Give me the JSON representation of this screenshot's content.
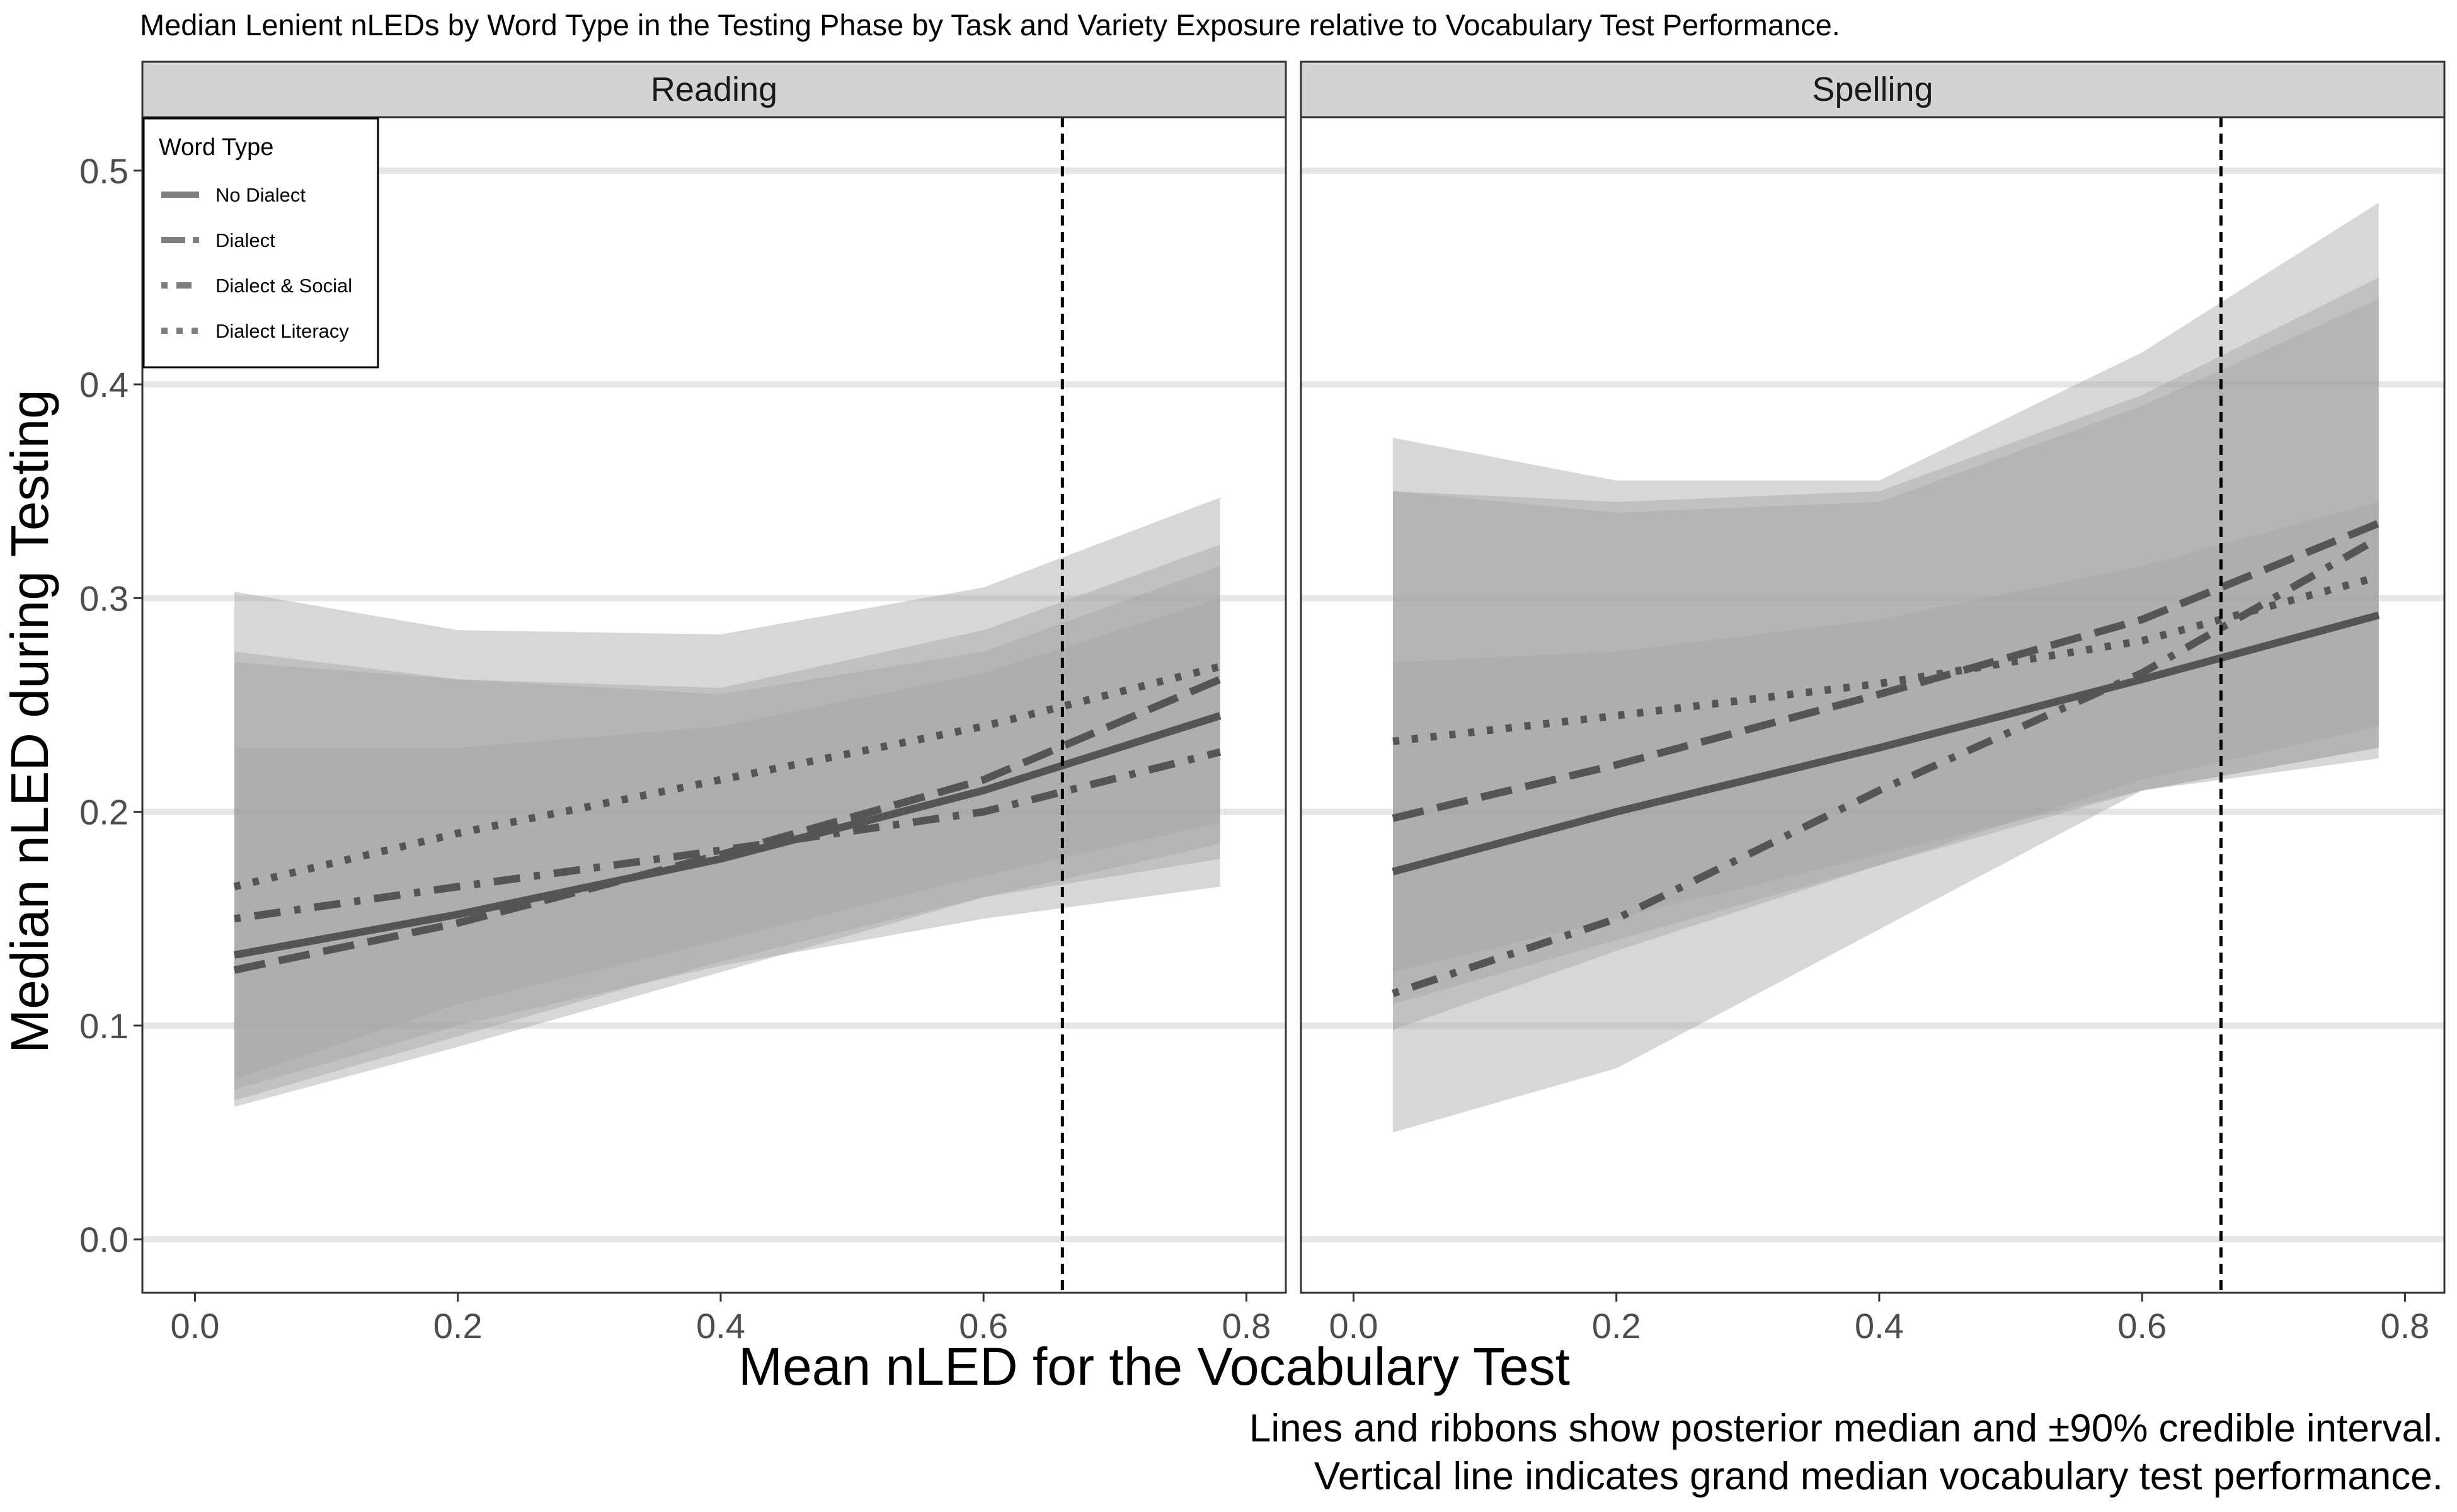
{
  "title": "Median Lenient nLEDs by Word Type in the Testing Phase by Task and Variety Exposure relative to Vocabulary Test Performance.",
  "caption": [
    "Lines and ribbons show posterior median and ±90% credible interval.",
    "Vertical line indicates grand median vocabulary test performance."
  ],
  "colors": {
    "background": "#ffffff",
    "strip": "#d3d3d3",
    "gridline": "#e6e6e6",
    "ribbon": "#a6a6a6",
    "line": "#555555",
    "legend_line": "#7f7f7f",
    "axis_text": "#4d4d4d"
  },
  "chart_data": {
    "type": "line",
    "xlabel": "Mean nLED for the Vocabulary Test",
    "ylabel": "Median nLED during Testing",
    "xlim": [
      -0.04,
      0.83
    ],
    "ylim": [
      -0.025,
      0.525
    ],
    "x_ticks": [
      "0.0",
      "0.2",
      "0.4",
      "0.6",
      "0.8"
    ],
    "y_ticks": [
      "0.0",
      "0.1",
      "0.2",
      "0.3",
      "0.4",
      "0.5"
    ],
    "grid": "horizontal major",
    "reference_line": {
      "x": 0.66,
      "style": "dashed",
      "meaning": "grand median vocabulary test performance"
    },
    "legend": {
      "title": "Word Type",
      "position": "top-left",
      "entries": [
        {
          "label": "No Dialect",
          "linetype": "solid"
        },
        {
          "label": "Dialect",
          "linetype": "dashed"
        },
        {
          "label": "Dialect & Social",
          "linetype": "dotdash"
        },
        {
          "label": "Dialect Literacy",
          "linetype": "dotted"
        }
      ]
    },
    "panels": [
      {
        "name": "Reading",
        "series": [
          {
            "name": "No Dialect",
            "linetype": "solid",
            "x": [
              0.03,
              0.2,
              0.4,
              0.6,
              0.78
            ],
            "median": [
              0.133,
              0.152,
              0.178,
              0.21,
              0.245
            ],
            "lower": [
              0.065,
              0.095,
              0.13,
              0.16,
              0.178
            ],
            "upper": [
              0.275,
              0.262,
              0.255,
              0.275,
              0.315
            ]
          },
          {
            "name": "Dialect",
            "linetype": "dashed",
            "x": [
              0.03,
              0.2,
              0.4,
              0.6,
              0.78
            ],
            "median": [
              0.126,
              0.148,
              0.18,
              0.215,
              0.262
            ],
            "lower": [
              0.062,
              0.09,
              0.125,
              0.16,
              0.185
            ],
            "upper": [
              0.303,
              0.285,
              0.283,
              0.305,
              0.347
            ]
          },
          {
            "name": "Dialect & Social",
            "linetype": "dotdash",
            "x": [
              0.03,
              0.2,
              0.4,
              0.6,
              0.78
            ],
            "median": [
              0.15,
              0.165,
              0.182,
              0.2,
              0.228
            ],
            "lower": [
              0.07,
              0.1,
              0.128,
              0.15,
              0.165
            ],
            "upper": [
              0.23,
              0.23,
              0.24,
              0.265,
              0.3
            ]
          },
          {
            "name": "Dialect Literacy",
            "linetype": "dotted",
            "x": [
              0.03,
              0.2,
              0.4,
              0.6,
              0.78
            ],
            "median": [
              0.165,
              0.19,
              0.215,
              0.24,
              0.268
            ],
            "lower": [
              0.075,
              0.11,
              0.14,
              0.17,
              0.195
            ],
            "upper": [
              0.27,
              0.262,
              0.258,
              0.285,
              0.325
            ]
          }
        ]
      },
      {
        "name": "Spelling",
        "series": [
          {
            "name": "No Dialect",
            "linetype": "solid",
            "x": [
              0.03,
              0.2,
              0.4,
              0.6,
              0.78
            ],
            "median": [
              0.172,
              0.2,
              0.23,
              0.262,
              0.292
            ],
            "lower": [
              0.098,
              0.135,
              0.175,
              0.21,
              0.23
            ],
            "upper": [
              0.27,
              0.275,
              0.29,
              0.315,
              0.345
            ]
          },
          {
            "name": "Dialect",
            "linetype": "dashed",
            "x": [
              0.03,
              0.2,
              0.4,
              0.6,
              0.78
            ],
            "median": [
              0.197,
              0.222,
              0.255,
              0.29,
              0.335
            ],
            "lower": [
              0.11,
              0.14,
              0.175,
              0.215,
              0.24
            ],
            "upper": [
              0.35,
              0.345,
              0.35,
              0.395,
              0.45
            ]
          },
          {
            "name": "Dialect & Social",
            "linetype": "dotdash",
            "x": [
              0.03,
              0.2,
              0.4,
              0.6,
              0.78
            ],
            "median": [
              0.115,
              0.15,
              0.21,
              0.265,
              0.328
            ],
            "lower": [
              0.05,
              0.08,
              0.145,
              0.21,
              0.23
            ],
            "upper": [
              0.375,
              0.355,
              0.355,
              0.415,
              0.485
            ]
          },
          {
            "name": "Dialect Literacy",
            "linetype": "dotted",
            "x": [
              0.03,
              0.2,
              0.4,
              0.6,
              0.78
            ],
            "median": [
              0.233,
              0.245,
              0.26,
              0.28,
              0.31
            ],
            "lower": [
              0.125,
              0.15,
              0.18,
              0.21,
              0.225
            ],
            "upper": [
              0.35,
              0.34,
              0.345,
              0.39,
              0.44
            ]
          }
        ]
      }
    ]
  }
}
